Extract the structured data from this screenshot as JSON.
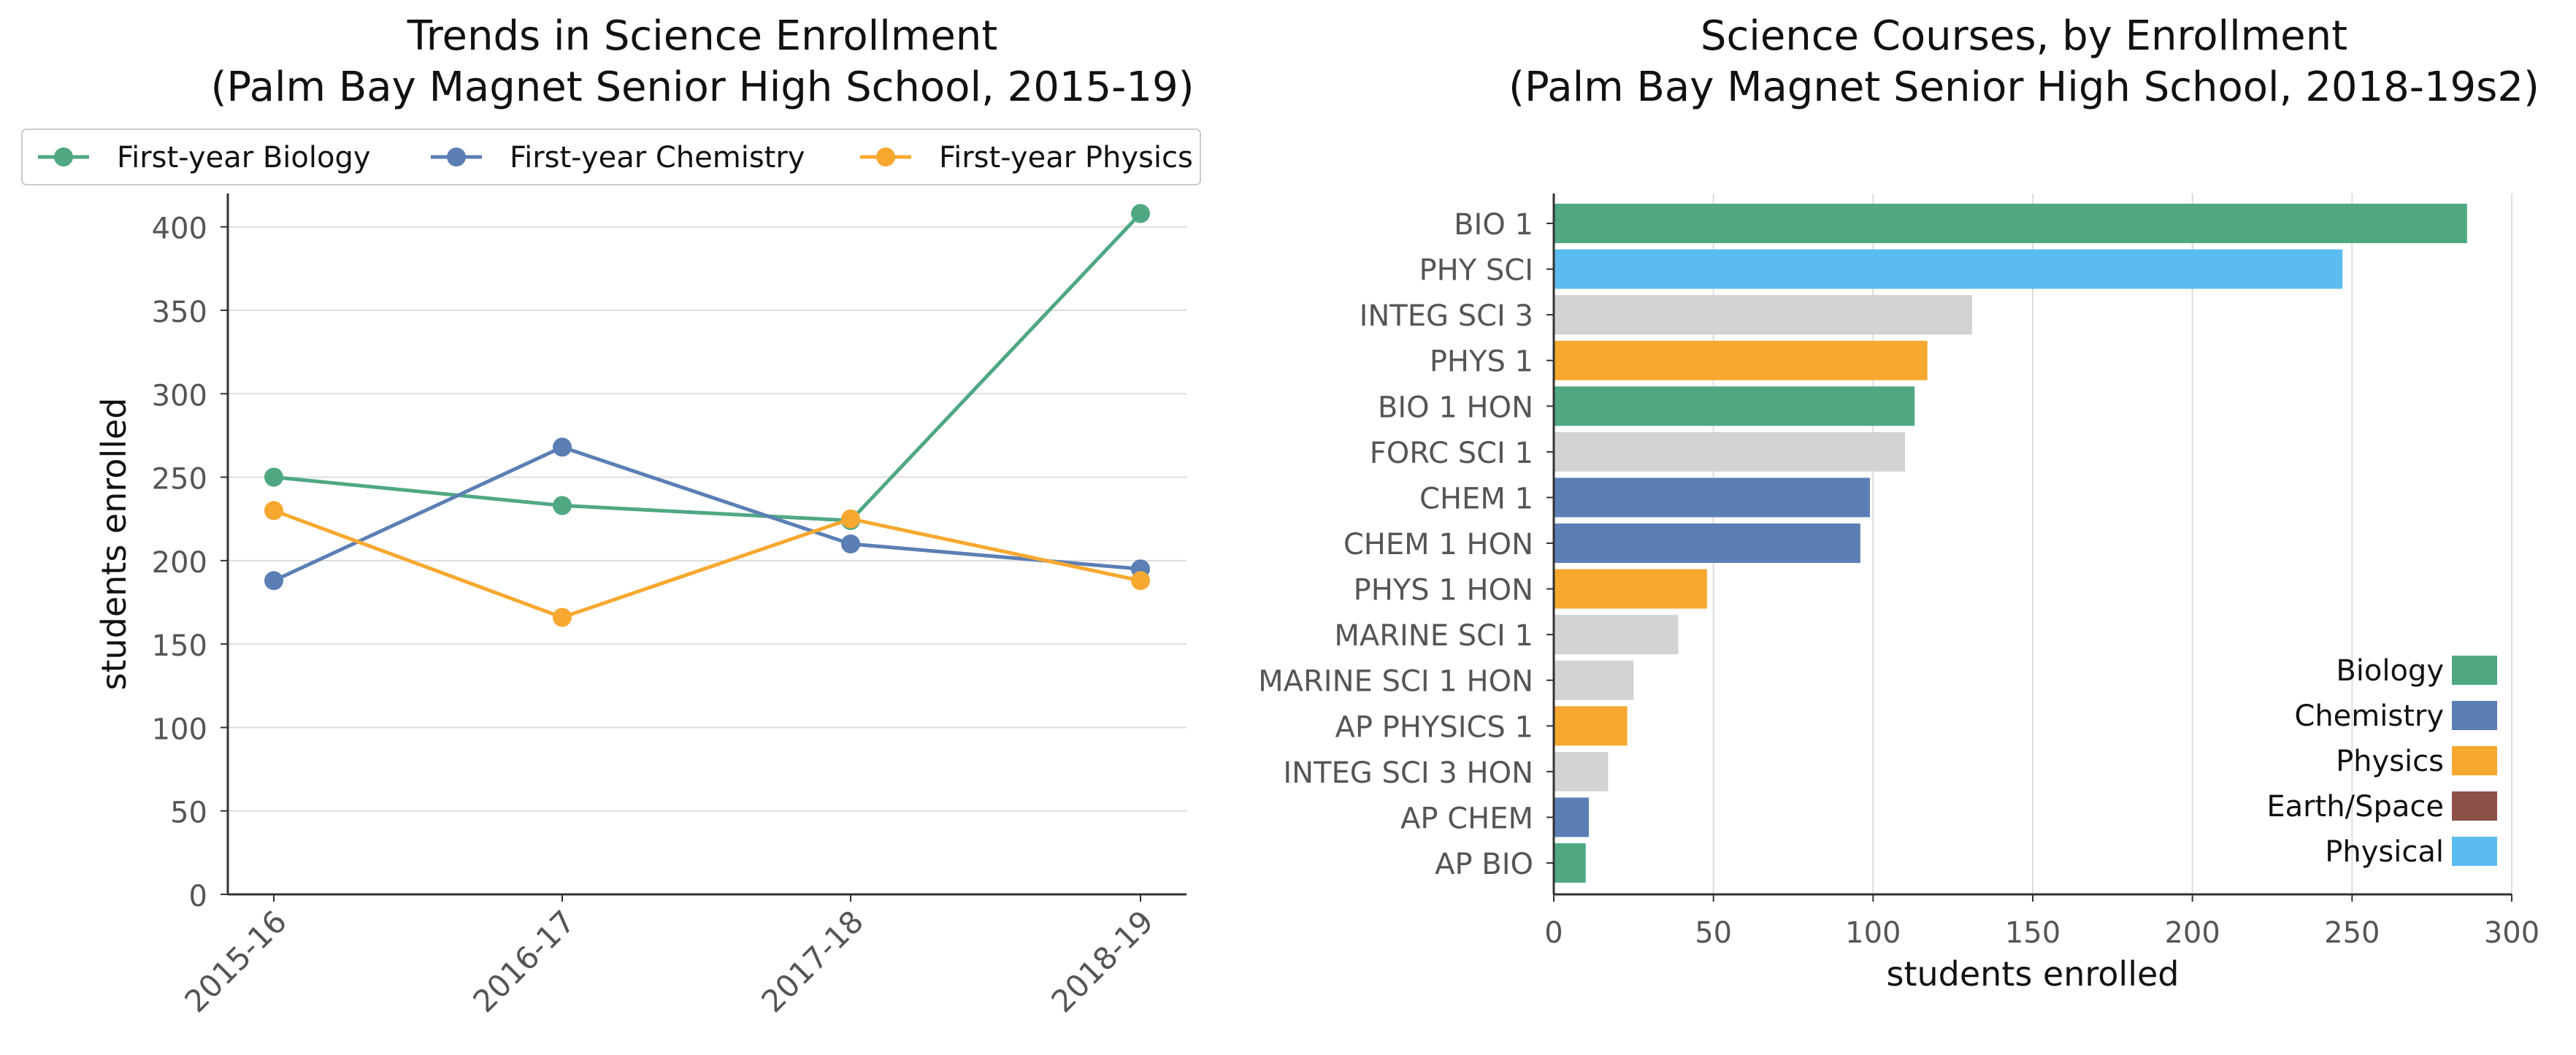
{
  "chart_data": [
    {
      "type": "line",
      "title": "Trends in Science Enrollment\n(Palm Bay Magnet Senior High School, 2015-19)",
      "title_lines": [
        "Trends in Science Enrollment",
        "(Palm Bay Magnet Senior High School, 2015-19)"
      ],
      "xlabel": "",
      "ylabel": "students enrolled",
      "categories": [
        "2015-16",
        "2016-17",
        "2017-18",
        "2018-19"
      ],
      "ylim": [
        0,
        420
      ],
      "yticks": [
        0,
        50,
        100,
        150,
        200,
        250,
        300,
        350,
        400
      ],
      "grid": "horizontal",
      "legend_position": "top",
      "series": [
        {
          "name": "First-year Biology",
          "color": "#4fa882",
          "values": [
            250,
            233,
            224,
            408
          ]
        },
        {
          "name": "First-year Chemistry",
          "color": "#5b7fb4",
          "values": [
            188,
            268,
            210,
            195
          ]
        },
        {
          "name": "First-year Physics",
          "color": "#f7a830",
          "values": [
            230,
            166,
            225,
            188
          ]
        }
      ]
    },
    {
      "type": "bar",
      "orientation": "horizontal",
      "title": "Science Courses, by Enrollment\n(Palm Bay Magnet Senior High School, 2018-19s2)",
      "title_lines": [
        "Science Courses, by Enrollment",
        "(Palm Bay Magnet Senior High School, 2018-19s2)"
      ],
      "xlabel": "students enrolled",
      "ylabel": "",
      "xlim": [
        0,
        300
      ],
      "xticks": [
        0,
        50,
        100,
        150,
        200,
        250,
        300
      ],
      "grid": "vertical",
      "legend_position": "bottom-right",
      "legend": [
        {
          "name": "Biology",
          "color": "#4fa882"
        },
        {
          "name": "Chemistry",
          "color": "#5b7fb4"
        },
        {
          "name": "Physics",
          "color": "#f7a830"
        },
        {
          "name": "Earth/Space",
          "color": "#8b5046"
        },
        {
          "name": "Physical",
          "color": "#5bbcef"
        }
      ],
      "bars": [
        {
          "label": "BIO 1",
          "value": 286,
          "color": "#4fa882"
        },
        {
          "label": "PHY SCI",
          "value": 247,
          "color": "#5bbcef"
        },
        {
          "label": "INTEG SCI 3",
          "value": 131,
          "color": "#d3d3d3"
        },
        {
          "label": "PHYS 1",
          "value": 117,
          "color": "#f7a830"
        },
        {
          "label": "BIO 1 HON",
          "value": 113,
          "color": "#4fa882"
        },
        {
          "label": "FORC SCI 1",
          "value": 110,
          "color": "#d3d3d3"
        },
        {
          "label": "CHEM 1",
          "value": 99,
          "color": "#5b7fb4"
        },
        {
          "label": "CHEM 1 HON",
          "value": 96,
          "color": "#5b7fb4"
        },
        {
          "label": "PHYS 1 HON",
          "value": 48,
          "color": "#f7a830"
        },
        {
          "label": "MARINE SCI 1",
          "value": 39,
          "color": "#d3d3d3"
        },
        {
          "label": "MARINE SCI 1 HON",
          "value": 25,
          "color": "#d3d3d3"
        },
        {
          "label": "AP PHYSICS 1",
          "value": 23,
          "color": "#f7a830"
        },
        {
          "label": "INTEG SCI 3 HON",
          "value": 17,
          "color": "#d3d3d3"
        },
        {
          "label": "AP CHEM",
          "value": 11,
          "color": "#5b7fb4"
        },
        {
          "label": "AP BIO",
          "value": 10,
          "color": "#4fa882"
        }
      ]
    }
  ]
}
